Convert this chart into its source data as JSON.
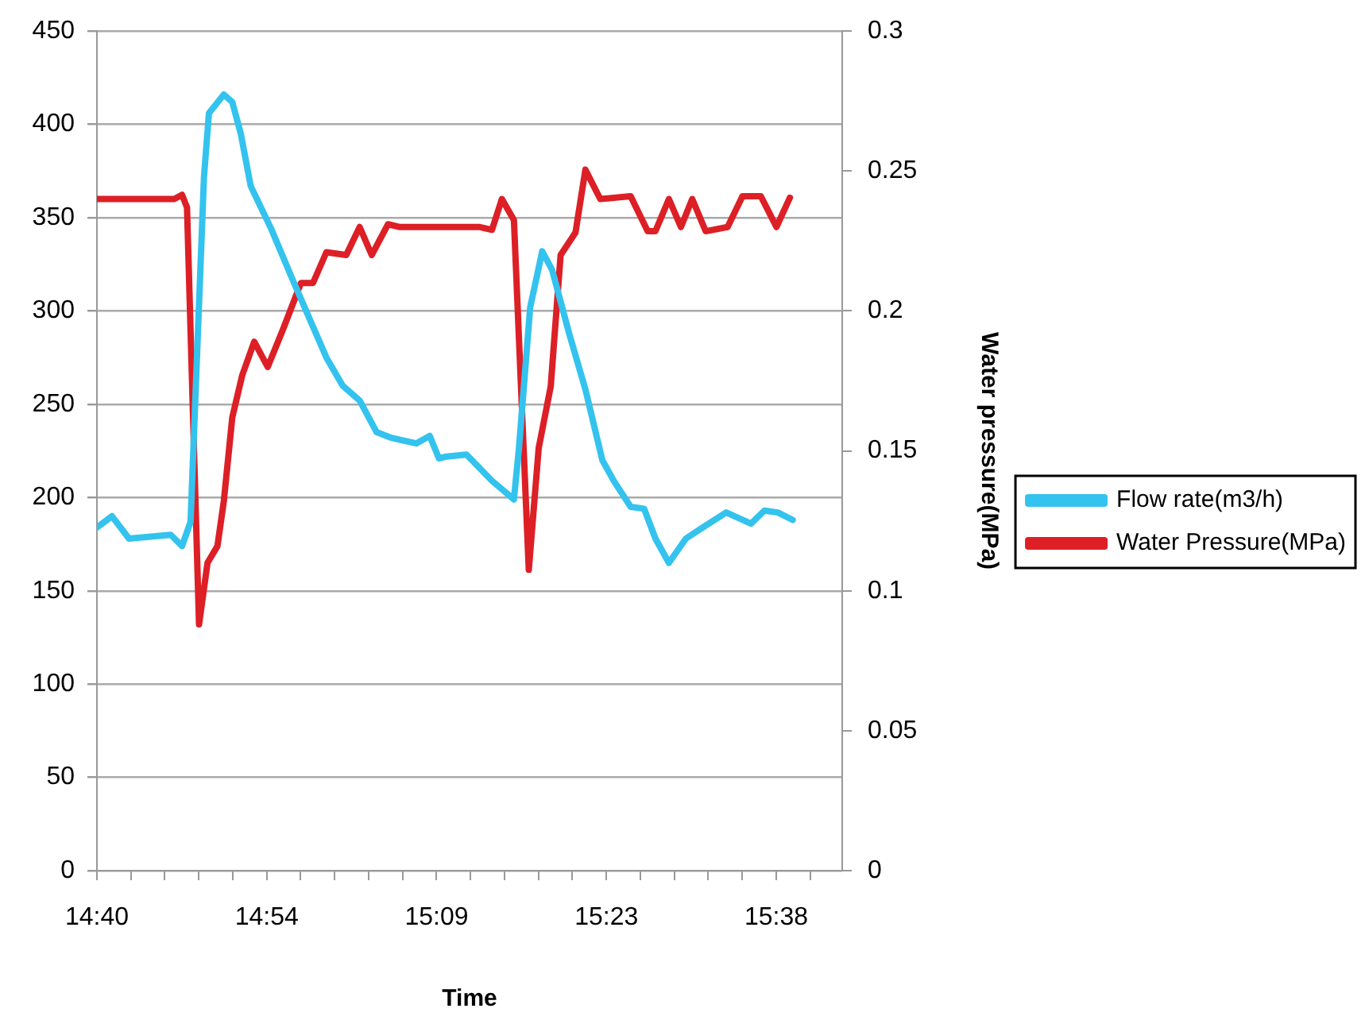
{
  "chart_data": {
    "type": "line",
    "xlabel": "Time",
    "y2label": "Water pressure(MPa)",
    "xlim": [
      14.6667,
      15.72
    ],
    "xticks": [
      {
        "value": 14.6667,
        "label": "14:40"
      },
      {
        "value": 14.7147,
        "label": null
      },
      {
        "value": 14.7627,
        "label": null
      },
      {
        "value": 14.8107,
        "label": null
      },
      {
        "value": 14.8587,
        "label": null
      },
      {
        "value": 14.9067,
        "label": "14:54"
      },
      {
        "value": 14.9547,
        "label": null
      },
      {
        "value": 15.0027,
        "label": null
      },
      {
        "value": 15.0507,
        "label": null
      },
      {
        "value": 15.0987,
        "label": null
      },
      {
        "value": 15.1467,
        "label": "15:09"
      },
      {
        "value": 15.1947,
        "label": null
      },
      {
        "value": 15.2427,
        "label": null
      },
      {
        "value": 15.2907,
        "label": null
      },
      {
        "value": 15.3387,
        "label": null
      },
      {
        "value": 15.3867,
        "label": "15:23"
      },
      {
        "value": 15.4347,
        "label": null
      },
      {
        "value": 15.4827,
        "label": null
      },
      {
        "value": 15.5307,
        "label": null
      },
      {
        "value": 15.5787,
        "label": null
      },
      {
        "value": 15.6267,
        "label": "15:38"
      },
      {
        "value": 15.6747,
        "label": null
      }
    ],
    "ylim": [
      0,
      450
    ],
    "yticks": [
      0,
      50,
      100,
      150,
      200,
      250,
      300,
      350,
      400,
      450
    ],
    "y2lim": [
      0,
      0.3
    ],
    "y2ticks": [
      0,
      0.05,
      0.1,
      0.15,
      0.2,
      0.25,
      0.3
    ],
    "grid": "y",
    "legend": "right",
    "marker": "none",
    "line_style": "solid",
    "series": [
      {
        "name": "Flow rate(m3/h)",
        "color": "#33c3ee",
        "x": [
          14.667,
          14.688,
          14.712,
          14.771,
          14.787,
          14.799,
          14.818,
          14.825,
          14.846,
          14.858,
          14.87,
          14.884,
          14.913,
          14.943,
          14.967,
          14.991,
          15.014,
          15.038,
          15.062,
          15.083,
          15.118,
          15.137,
          15.15,
          15.161,
          15.189,
          15.225,
          15.256,
          15.263,
          15.279,
          15.296,
          15.31,
          15.334,
          15.357,
          15.381,
          15.397,
          15.421,
          15.44,
          15.456,
          15.475,
          15.499,
          15.523,
          15.556,
          15.591,
          15.61,
          15.629,
          15.65
        ],
        "values": [
          184,
          190,
          178,
          180,
          174,
          187,
          372,
          406,
          416,
          412,
          395,
          367,
          344,
          317,
          296,
          275,
          260,
          252,
          235,
          232,
          229,
          233,
          221,
          222,
          223,
          209,
          199,
          226,
          302,
          332,
          322,
          288,
          258,
          220,
          209,
          195,
          194,
          178,
          165,
          178,
          184,
          192,
          186,
          193,
          192,
          188
        ]
      },
      {
        "name": "Water Pressure(MPa)",
        "color": "#dd1f26",
        "axis": "y2",
        "x": [
          14.667,
          14.776,
          14.787,
          14.794,
          14.811,
          14.823,
          14.837,
          14.846,
          14.858,
          14.872,
          14.889,
          14.908,
          14.929,
          14.955,
          14.972,
          14.991,
          15.019,
          15.038,
          15.055,
          15.078,
          15.095,
          15.208,
          15.225,
          15.239,
          15.256,
          15.277,
          15.291,
          15.308,
          15.322,
          15.343,
          15.357,
          15.378,
          15.421,
          15.445,
          15.456,
          15.475,
          15.492,
          15.508,
          15.527,
          15.558,
          15.579,
          15.605,
          15.627,
          15.646
        ],
        "values": [
          0.24,
          0.24,
          0.2415,
          0.237,
          0.088,
          0.11,
          0.116,
          0.132,
          0.162,
          0.177,
          0.189,
          0.18,
          0.193,
          0.21,
          0.21,
          0.221,
          0.22,
          0.23,
          0.22,
          0.231,
          0.23,
          0.23,
          0.229,
          0.24,
          0.2325,
          0.1075,
          0.151,
          0.173,
          0.22,
          0.228,
          0.2505,
          0.24,
          0.241,
          0.2285,
          0.2285,
          0.24,
          0.23,
          0.24,
          0.2285,
          0.23,
          0.241,
          0.241,
          0.23,
          0.2405
        ]
      }
    ]
  }
}
